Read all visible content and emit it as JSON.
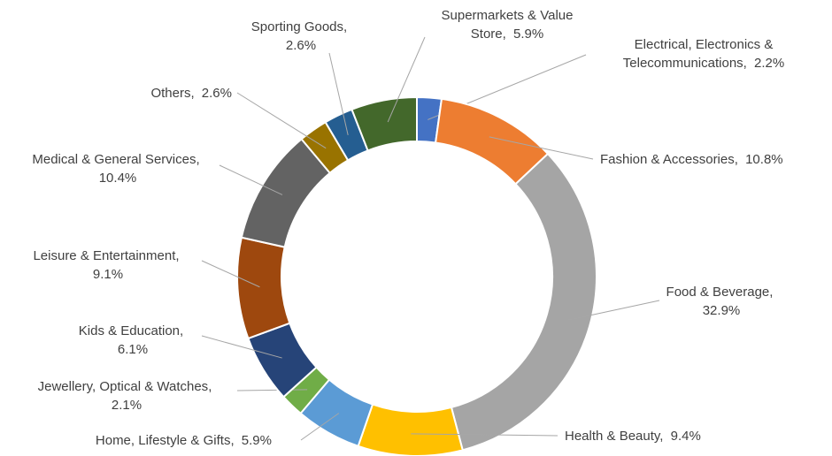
{
  "chart_data": {
    "type": "donut",
    "categories": [
      "Electrical, Electronics & Telecommunications",
      "Fashion & Accessories",
      "Food & Beverage",
      "Health & Beauty",
      "Home, Lifestyle & Gifts",
      "Jewellery, Optical & Watches",
      "Kids & Education",
      "Leisure & Entertainment",
      "Medical & General Services",
      "Others",
      "Sporting Goods",
      "Supermarkets & Value Store"
    ],
    "values": [
      2.2,
      10.8,
      32.9,
      9.4,
      5.9,
      2.1,
      6.1,
      9.1,
      10.4,
      2.6,
      2.6,
      5.9
    ],
    "value_labels": [
      "2.2%",
      "10.8%",
      "32.9%",
      "9.4%",
      "5.9%",
      "2.1%",
      "6.1%",
      "9.1%",
      "10.4%",
      "2.6%",
      "2.6%",
      "5.9%"
    ],
    "colors": [
      "#4472c4",
      "#ed7d31",
      "#a5a5a5",
      "#ffc000",
      "#5b9bd5",
      "#70ad47",
      "#264478",
      "#9e480e",
      "#636363",
      "#997300",
      "#255e91",
      "#43682b"
    ]
  }
}
